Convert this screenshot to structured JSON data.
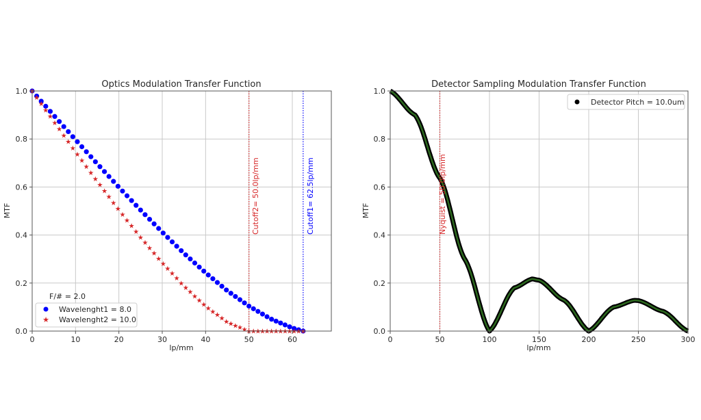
{
  "chart_data": [
    {
      "type": "line",
      "title": "Optics Modulation Transfer Function",
      "xlabel": "lp/mm",
      "ylabel": "MTF",
      "xlim": [
        0,
        69
      ],
      "ylim": [
        0,
        1.0
      ],
      "xticks": [
        0,
        10,
        20,
        30,
        40,
        50,
        60
      ],
      "yticks": [
        0.0,
        0.2,
        0.4,
        0.6,
        0.8,
        1.0
      ],
      "grid": true,
      "legend_title": "F/# = 2.0",
      "legend_position": "lower left",
      "series": [
        {
          "name": "Wavelenght1 = 8.0",
          "color": "#0000ff",
          "marker": "circle",
          "cutoff": 62.5,
          "x": [
            0,
            5,
            10,
            15,
            20,
            25,
            30,
            35,
            40,
            45,
            50,
            55,
            60,
            62.5
          ],
          "values": [
            1.0,
            0.898,
            0.797,
            0.697,
            0.599,
            0.504,
            0.412,
            0.324,
            0.243,
            0.168,
            0.104,
            0.051,
            0.013,
            0.0
          ]
        },
        {
          "name": "Wavelenght2 = 10.0",
          "color": "#d62728",
          "marker": "star",
          "cutoff": 50.0,
          "x": [
            0,
            5,
            10,
            15,
            20,
            25,
            30,
            35,
            40,
            45,
            50,
            55,
            60,
            62.5
          ],
          "values": [
            1.0,
            0.873,
            0.747,
            0.624,
            0.505,
            0.391,
            0.285,
            0.188,
            0.104,
            0.037,
            0.0,
            0.0,
            0.0,
            0.0
          ]
        }
      ],
      "annotations": [
        {
          "text": "Cutoff2= 50.0lp/mm",
          "x": 50.0,
          "color": "#d62728",
          "style": "dotted vertical line"
        },
        {
          "text": "Cutoff1= 62.5lp/mm",
          "x": 62.5,
          "color": "#0000ff",
          "style": "dotted vertical line"
        }
      ]
    },
    {
      "type": "line",
      "title": "Detector Sampling Modulation Transfer Function",
      "xlabel": "lp/mm",
      "ylabel": "MTF",
      "xlim": [
        0,
        300
      ],
      "ylim": [
        0,
        1.0
      ],
      "xticks": [
        0,
        50,
        100,
        150,
        200,
        250,
        300
      ],
      "yticks": [
        0.0,
        0.2,
        0.4,
        0.6,
        0.8,
        1.0
      ],
      "grid": true,
      "legend_position": "upper right",
      "series": [
        {
          "name": "Detector Pitch = 10.0um",
          "color": "#000000",
          "line_color": "#2d6a1f",
          "marker": "circle",
          "x": [
            0,
            25,
            50,
            75,
            100,
            125,
            143,
            150,
            175,
            200,
            225,
            246,
            250,
            275,
            300
          ],
          "values": [
            1.0,
            0.9,
            0.637,
            0.3,
            0.0,
            0.18,
            0.217,
            0.212,
            0.129,
            0.0,
            0.1,
            0.128,
            0.127,
            0.082,
            0.0
          ]
        }
      ],
      "annotations": [
        {
          "text": "Nyquist = 50.0lp/mm",
          "x": 50.0,
          "color": "#d62728",
          "style": "dotted vertical line"
        }
      ]
    }
  ],
  "left": {
    "title": "Optics Modulation Transfer Function",
    "xlabel": "lp/mm",
    "ylabel": "MTF",
    "xticks": [
      "0",
      "10",
      "20",
      "30",
      "40",
      "50",
      "60"
    ],
    "yticks": [
      "0.0",
      "0.2",
      "0.4",
      "0.6",
      "0.8",
      "1.0"
    ],
    "legend_title": "F/# = 2.0",
    "legend_items": [
      "Wavelenght1 = 8.0",
      "Wavelenght2 = 10.0"
    ],
    "cutoff1_label": "Cutoff1= 62.5lp/mm",
    "cutoff2_label": "Cutoff2= 50.0lp/mm"
  },
  "right": {
    "title": "Detector Sampling Modulation Transfer Function",
    "xlabel": "lp/mm",
    "ylabel": "MTF",
    "xticks": [
      "0",
      "50",
      "100",
      "150",
      "200",
      "250",
      "300"
    ],
    "yticks": [
      "0.0",
      "0.2",
      "0.4",
      "0.6",
      "0.8",
      "1.0"
    ],
    "legend_items": [
      "Detector Pitch = 10.0um"
    ],
    "nyquist_label": "Nyquist = 50.0lp/mm"
  }
}
